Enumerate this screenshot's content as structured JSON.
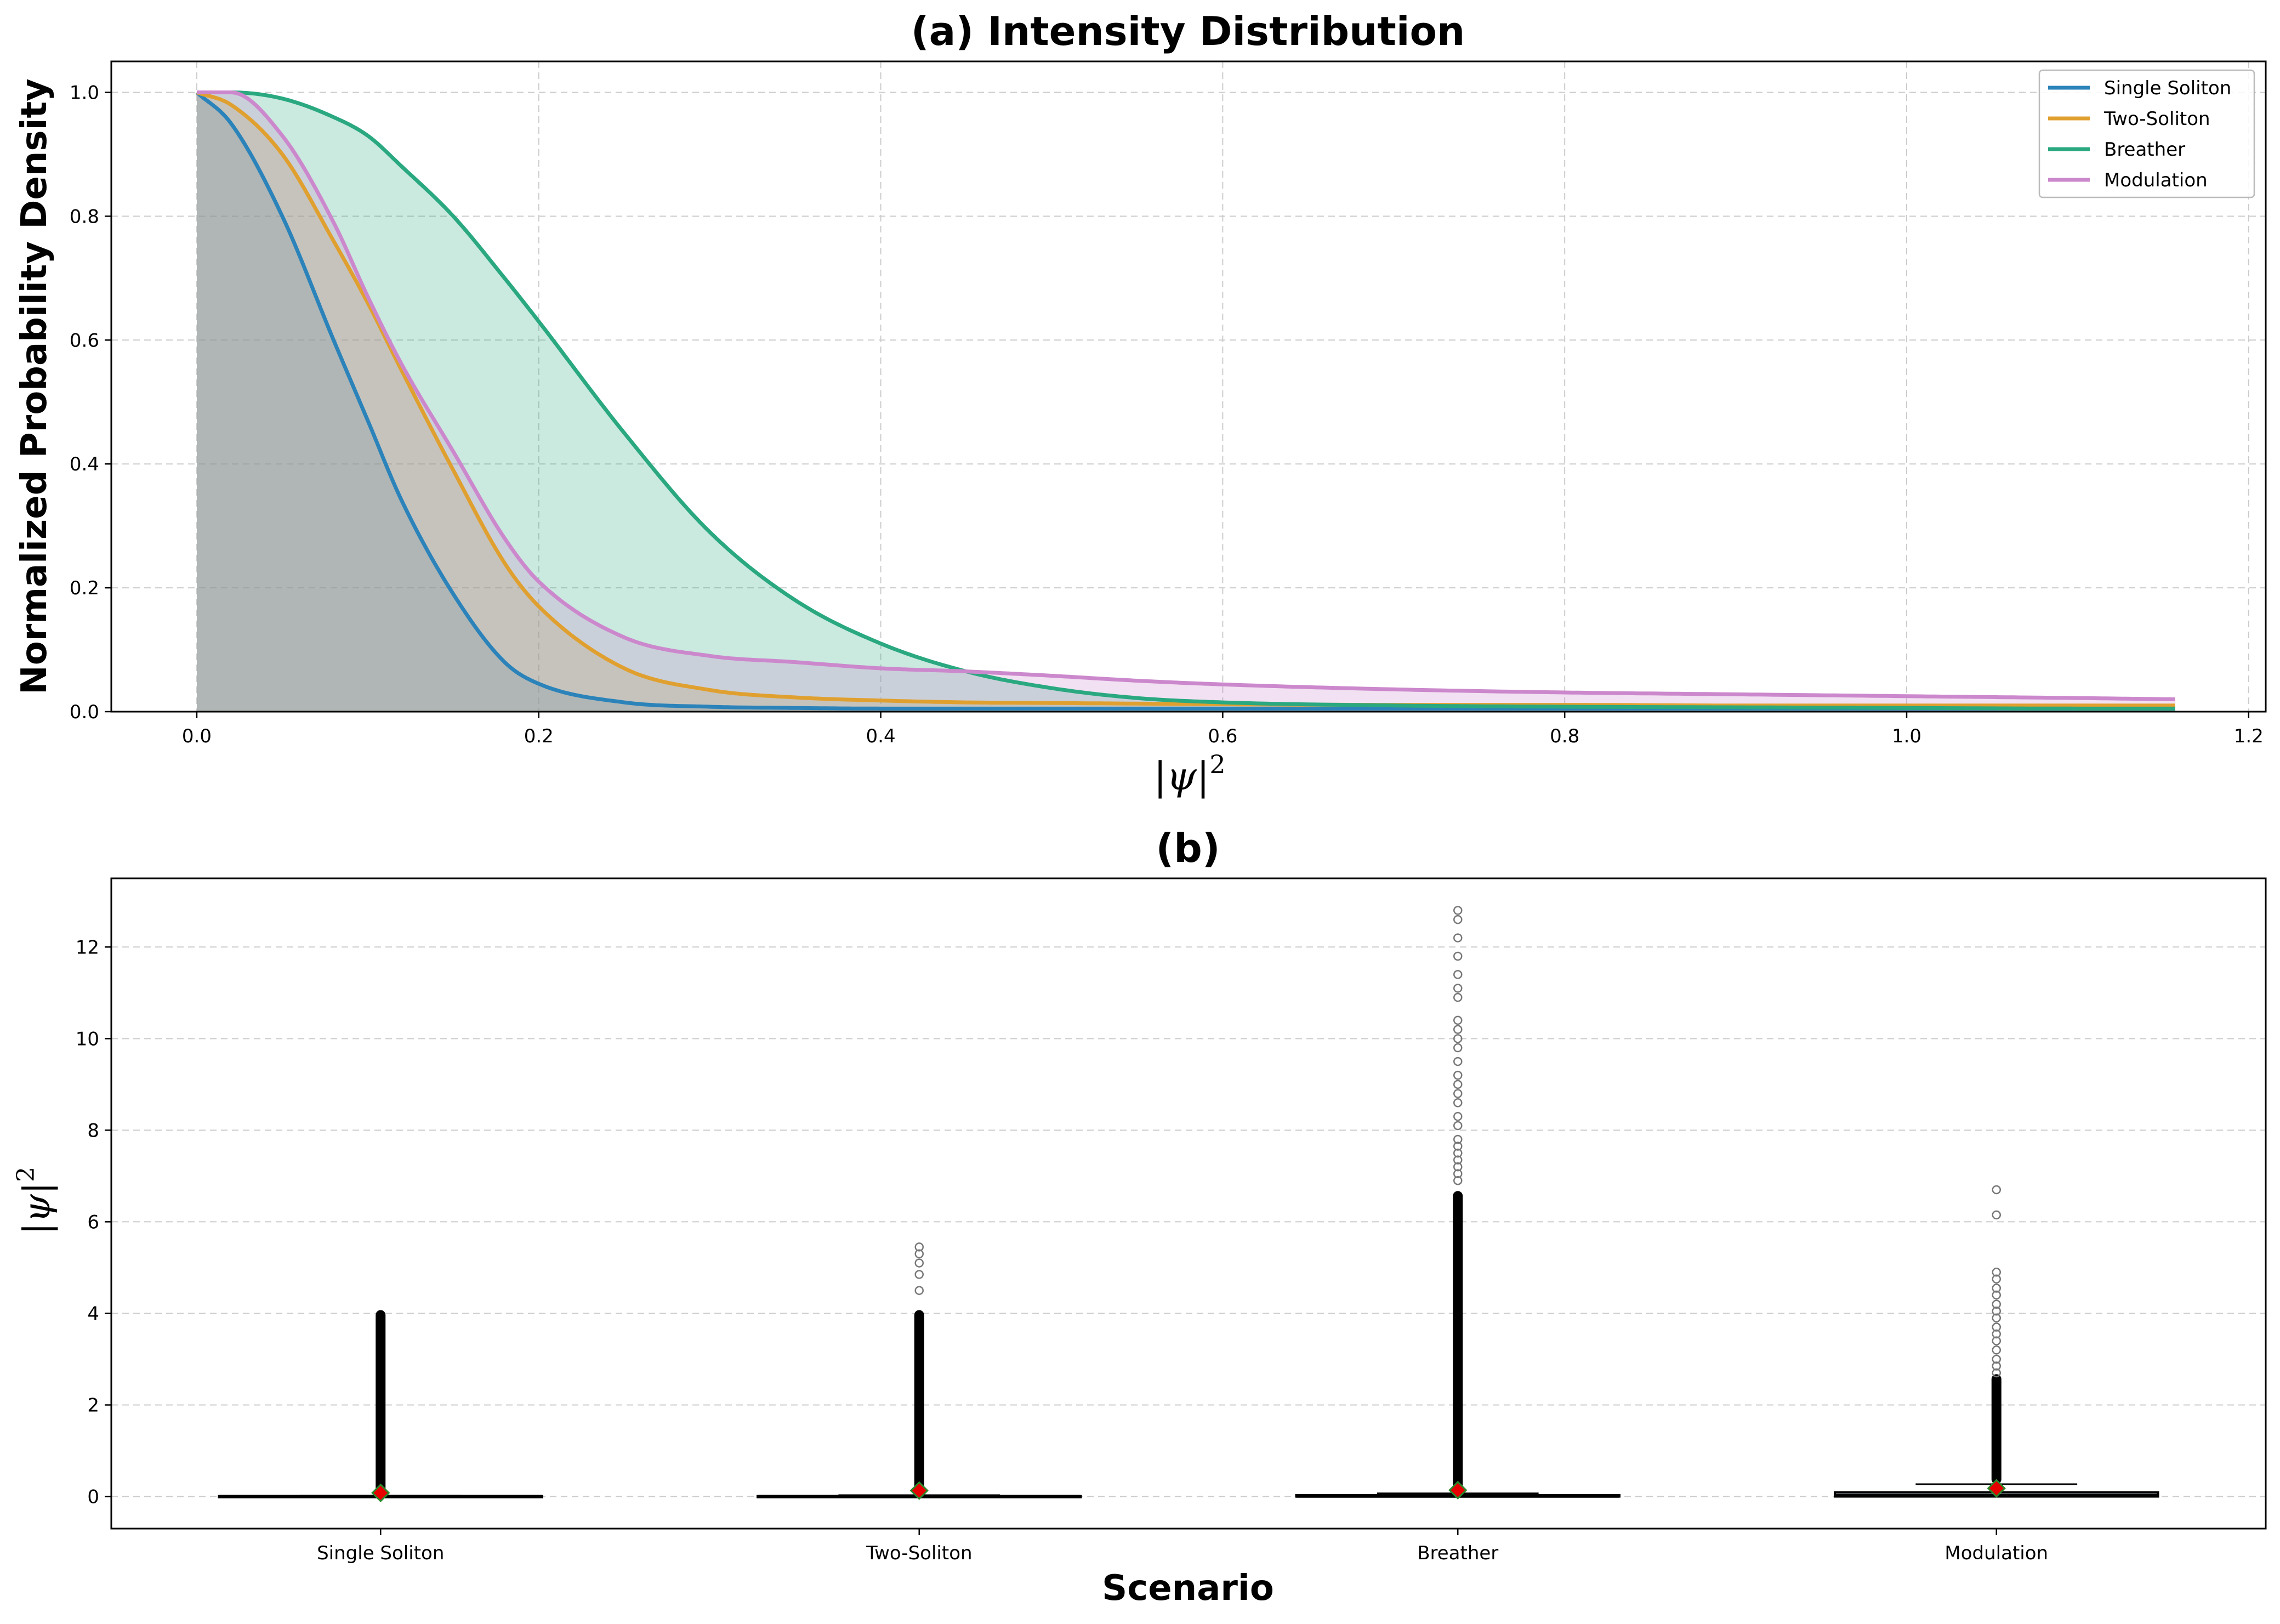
{
  "chart_data": [
    {
      "type": "line",
      "title": "(a) Intensity Distribution",
      "xlabel_base": "|ψ|",
      "xlabel_exp": "2",
      "ylabel": "Normalized Probability Density",
      "xlim": [
        -0.05,
        1.21
      ],
      "ylim": [
        0,
        1.05
      ],
      "xticks": [
        "0.0",
        "0.2",
        "0.4",
        "0.6",
        "0.8",
        "1.0",
        "1.2"
      ],
      "xtick_values": [
        0.0,
        0.2,
        0.4,
        0.6,
        0.8,
        1.0,
        1.2
      ],
      "yticks": [
        "0.0",
        "0.2",
        "0.4",
        "0.6",
        "0.8",
        "1.0"
      ],
      "ytick_values": [
        0.0,
        0.2,
        0.4,
        0.6,
        0.8,
        1.0
      ],
      "grid": true,
      "fill_under": true,
      "legend_position": "top-right",
      "x": [
        0.0,
        0.02,
        0.05,
        0.08,
        0.1,
        0.12,
        0.15,
        0.18,
        0.2,
        0.25,
        0.3,
        0.35,
        0.4,
        0.45,
        0.5,
        0.55,
        0.6,
        0.7,
        0.8,
        0.9,
        1.0,
        1.1,
        1.157
      ],
      "series": [
        {
          "name": "Single Soliton",
          "color": "#2b83ba",
          "values": [
            1.0,
            0.95,
            0.8,
            0.6,
            0.47,
            0.34,
            0.19,
            0.08,
            0.045,
            0.015,
            0.008,
            0.006,
            0.005,
            0.005,
            0.005,
            0.005,
            0.005,
            0.005,
            0.005,
            0.005,
            0.005,
            0.005,
            0.005
          ]
        },
        {
          "name": "Two-Soliton",
          "color": "#e0a030",
          "values": [
            1.0,
            0.98,
            0.9,
            0.76,
            0.66,
            0.55,
            0.39,
            0.24,
            0.17,
            0.07,
            0.035,
            0.023,
            0.018,
            0.015,
            0.014,
            0.013,
            0.012,
            0.011,
            0.011,
            0.01,
            0.01,
            0.01,
            0.01
          ]
        },
        {
          "name": "Breather",
          "color": "#2aa880",
          "values": [
            1.0,
            1.0,
            0.99,
            0.96,
            0.93,
            0.88,
            0.8,
            0.7,
            0.63,
            0.45,
            0.29,
            0.18,
            0.11,
            0.065,
            0.038,
            0.022,
            0.015,
            0.01,
            0.008,
            0.007,
            0.006,
            0.005,
            0.005
          ]
        },
        {
          "name": "Modulation",
          "color": "#cc88cc",
          "values": [
            1.0,
            1.0,
            0.93,
            0.79,
            0.67,
            0.56,
            0.42,
            0.28,
            0.21,
            0.12,
            0.09,
            0.08,
            0.07,
            0.065,
            0.058,
            0.05,
            0.044,
            0.036,
            0.031,
            0.028,
            0.025,
            0.022,
            0.02
          ]
        }
      ]
    },
    {
      "type": "box",
      "title": "(b)",
      "xlabel": "Scenario",
      "ylabel_base": "|ψ|",
      "ylabel_exp": "2",
      "ylim": [
        -0.7,
        13.5
      ],
      "yticks": [
        "0",
        "2",
        "4",
        "6",
        "8",
        "10",
        "12"
      ],
      "ytick_values": [
        0,
        2,
        4,
        6,
        8,
        10,
        12
      ],
      "grid": true,
      "categories": [
        "Single Soliton",
        "Two-Soliton",
        "Breather",
        "Modulation"
      ],
      "boxes": [
        {
          "q1": 0.0,
          "median": 0.0,
          "q3": 0.01,
          "whisker_low": 0.0,
          "whisker_high": 0.02,
          "mean": 0.08,
          "flier_max": 4.0,
          "flier_extra": []
        },
        {
          "q1": 0.0,
          "median": 0.0,
          "q3": 0.01,
          "whisker_low": 0.0,
          "whisker_high": 0.03,
          "mean": 0.13,
          "flier_max": 4.0,
          "flier_extra": [
            4.5,
            4.85,
            5.1,
            5.3,
            5.45
          ]
        },
        {
          "q1": 0.0,
          "median": 0.01,
          "q3": 0.03,
          "whisker_low": 0.0,
          "whisker_high": 0.07,
          "mean": 0.14,
          "flier_max": 6.6,
          "flier_extra": [
            6.9,
            7.05,
            7.2,
            7.35,
            7.5,
            7.65,
            7.8,
            8.1,
            8.3,
            8.6,
            8.8,
            9.0,
            9.2,
            9.5,
            9.8,
            10.0,
            10.2,
            10.4,
            10.9,
            11.1,
            11.4,
            11.8,
            12.2,
            12.6,
            12.8
          ]
        },
        {
          "q1": 0.0,
          "median": 0.02,
          "q3": 0.09,
          "whisker_low": 0.0,
          "whisker_high": 0.27,
          "mean": 0.18,
          "flier_max": 2.6,
          "flier_extra": [
            2.7,
            2.85,
            3.0,
            3.2,
            3.4,
            3.55,
            3.7,
            3.9,
            4.05,
            4.2,
            4.4,
            4.55,
            4.75,
            4.9,
            6.15,
            6.7
          ]
        }
      ]
    }
  ]
}
